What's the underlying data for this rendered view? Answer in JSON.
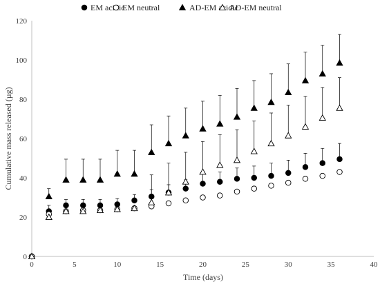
{
  "chart_data": {
    "type": "scatter",
    "title": "",
    "xlabel": "Time (days)",
    "ylabel": "Cumulative mass released (µg)",
    "xlim": [
      0,
      40
    ],
    "ylim": [
      0,
      120
    ],
    "x_ticks": [
      "0",
      "5",
      "10",
      "15",
      "20",
      "25",
      "30",
      "35",
      "40"
    ],
    "y_ticks": [
      "0",
      "20",
      "40",
      "60",
      "80",
      "100",
      "120"
    ],
    "grid": false,
    "legend_position": "top",
    "x": [
      0,
      2,
      4,
      6,
      8,
      10,
      12,
      14,
      16,
      18,
      20,
      22,
      24,
      26,
      28,
      30,
      32,
      34,
      36
    ],
    "series": [
      {
        "name": "EM acidic",
        "marker": "filled-circle",
        "color": "#000000",
        "values": [
          0,
          23,
          26,
          26,
          26,
          26.5,
          28.5,
          30.5,
          32.5,
          34.5,
          37,
          38,
          39.5,
          40,
          41,
          42.5,
          45.5,
          47.5,
          49.5
        ],
        "error": [
          0,
          3,
          3,
          3,
          3,
          3,
          3,
          3.5,
          4,
          4.5,
          5,
          5,
          5.5,
          6,
          6.5,
          6.5,
          7,
          7.5,
          8
        ]
      },
      {
        "name": "EM neutral",
        "marker": "open-circle",
        "color": "#000000",
        "values": [
          0,
          21.5,
          23,
          23.5,
          23.5,
          24,
          24.5,
          25.5,
          27,
          28.5,
          30,
          31,
          33,
          34.5,
          36,
          37.5,
          39.5,
          41,
          43
        ],
        "error": [
          0,
          0,
          0,
          0,
          0,
          0,
          0,
          0,
          0,
          0,
          0,
          0,
          0,
          0,
          0,
          0,
          0,
          0,
          0
        ]
      },
      {
        "name": "AD-EM acidic",
        "marker": "filled-triangle",
        "color": "#000000",
        "values": [
          0,
          30.5,
          39,
          39,
          39,
          42,
          42,
          53,
          57.5,
          61.5,
          65,
          67.5,
          71,
          75.5,
          78.5,
          83.5,
          89.5,
          93,
          98.5
        ],
        "error": [
          0,
          4,
          10.5,
          10.5,
          10.5,
          12,
          12,
          14,
          14,
          14,
          14,
          14.5,
          14.5,
          14,
          14.5,
          14.5,
          14.5,
          14.5,
          14.5
        ]
      },
      {
        "name": "AD-EM neutral",
        "marker": "open-triangle",
        "color": "#000000",
        "values": [
          0,
          20,
          23,
          23,
          23.5,
          24,
          24.5,
          27.5,
          32.5,
          38,
          43,
          46.5,
          49,
          53.5,
          57.5,
          61.5,
          66,
          70.5,
          75.5
        ],
        "error": [
          0,
          0,
          0,
          0,
          0,
          0,
          0,
          14,
          15,
          15,
          15.5,
          15.5,
          15.5,
          15.5,
          15.5,
          15.5,
          15.5,
          15.5,
          15.5
        ]
      }
    ]
  }
}
